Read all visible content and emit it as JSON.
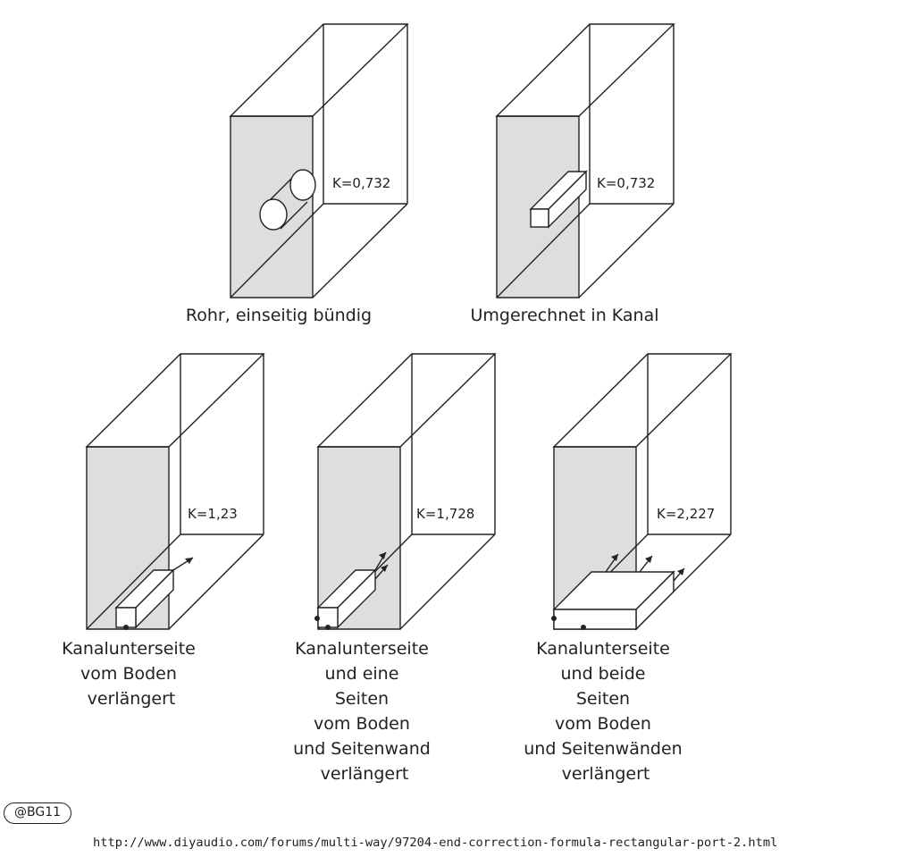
{
  "figures": [
    {
      "k_label": "K=0,732",
      "caption": [
        "Rohr, einseitig bündig"
      ]
    },
    {
      "k_label": "K=0,732",
      "caption": [
        "Umgerechnet in Kanal"
      ]
    },
    {
      "k_label": "K=1,23",
      "caption": [
        "Kanalunterseite",
        "vom Boden",
        "verlängert"
      ]
    },
    {
      "k_label": "K=1,728",
      "caption": [
        "Kanalunterseite",
        "und eine",
        "Seiten",
        "vom Boden",
        "und Seitenwand",
        "verlängert"
      ]
    },
    {
      "k_label": "K=2,227",
      "caption": [
        "Kanalunterseite",
        "und beide",
        "Seiten",
        "vom Boden",
        "und Seitenwänden",
        "verlängert"
      ]
    }
  ],
  "badge": "@BG11",
  "source_url": "http://www.diyaudio.com/forums/multi-way/97204-end-correction-formula-rectangular-port-2.html"
}
